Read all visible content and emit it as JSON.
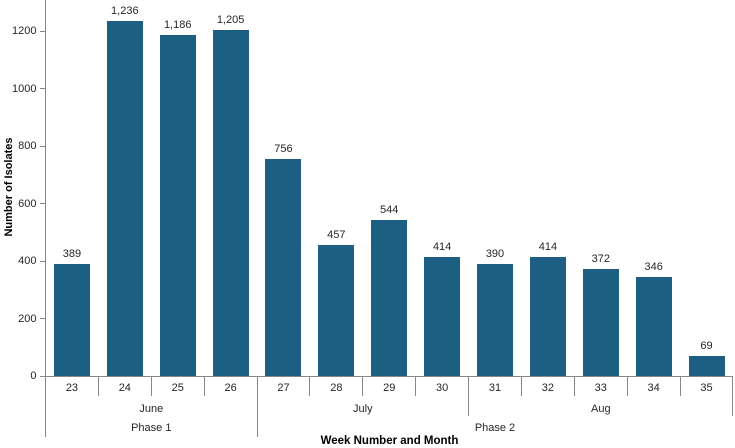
{
  "chart_data": {
    "type": "bar",
    "title": "",
    "xlabel": "Week Number and Month",
    "ylabel": "Number of Isolates",
    "ylim": [
      0,
      1300
    ],
    "ytick_values": [
      0,
      200,
      400,
      600,
      800,
      1000,
      1200
    ],
    "ytick_labels": [
      "0",
      "200",
      "400",
      "600",
      "800",
      "1000",
      "1200"
    ],
    "categories": [
      "23",
      "24",
      "25",
      "26",
      "27",
      "28",
      "29",
      "30",
      "31",
      "32",
      "33",
      "34",
      "35"
    ],
    "values": [
      389,
      1236,
      1186,
      1205,
      756,
      457,
      544,
      414,
      390,
      414,
      372,
      346,
      69
    ],
    "bar_labels": [
      "389",
      "1,236",
      "1,186",
      "1,205",
      "756",
      "457",
      "544",
      "414",
      "390",
      "414",
      "372",
      "346",
      "69"
    ],
    "month_groups": [
      {
        "label": "June",
        "start": 0,
        "count": 4
      },
      {
        "label": "July",
        "start": 4,
        "count": 4
      },
      {
        "label": "Aug",
        "start": 8,
        "count": 5
      }
    ],
    "phase_groups": [
      {
        "label": "Phase 1",
        "start": 0,
        "count": 4
      },
      {
        "label": "Phase 2",
        "start": 4,
        "count": 9
      }
    ],
    "grid": false,
    "legend": "none",
    "colors": {
      "bar": "#1C5F82",
      "axis": "#878787",
      "text": "#262626",
      "background": "#FFFFFF"
    }
  }
}
